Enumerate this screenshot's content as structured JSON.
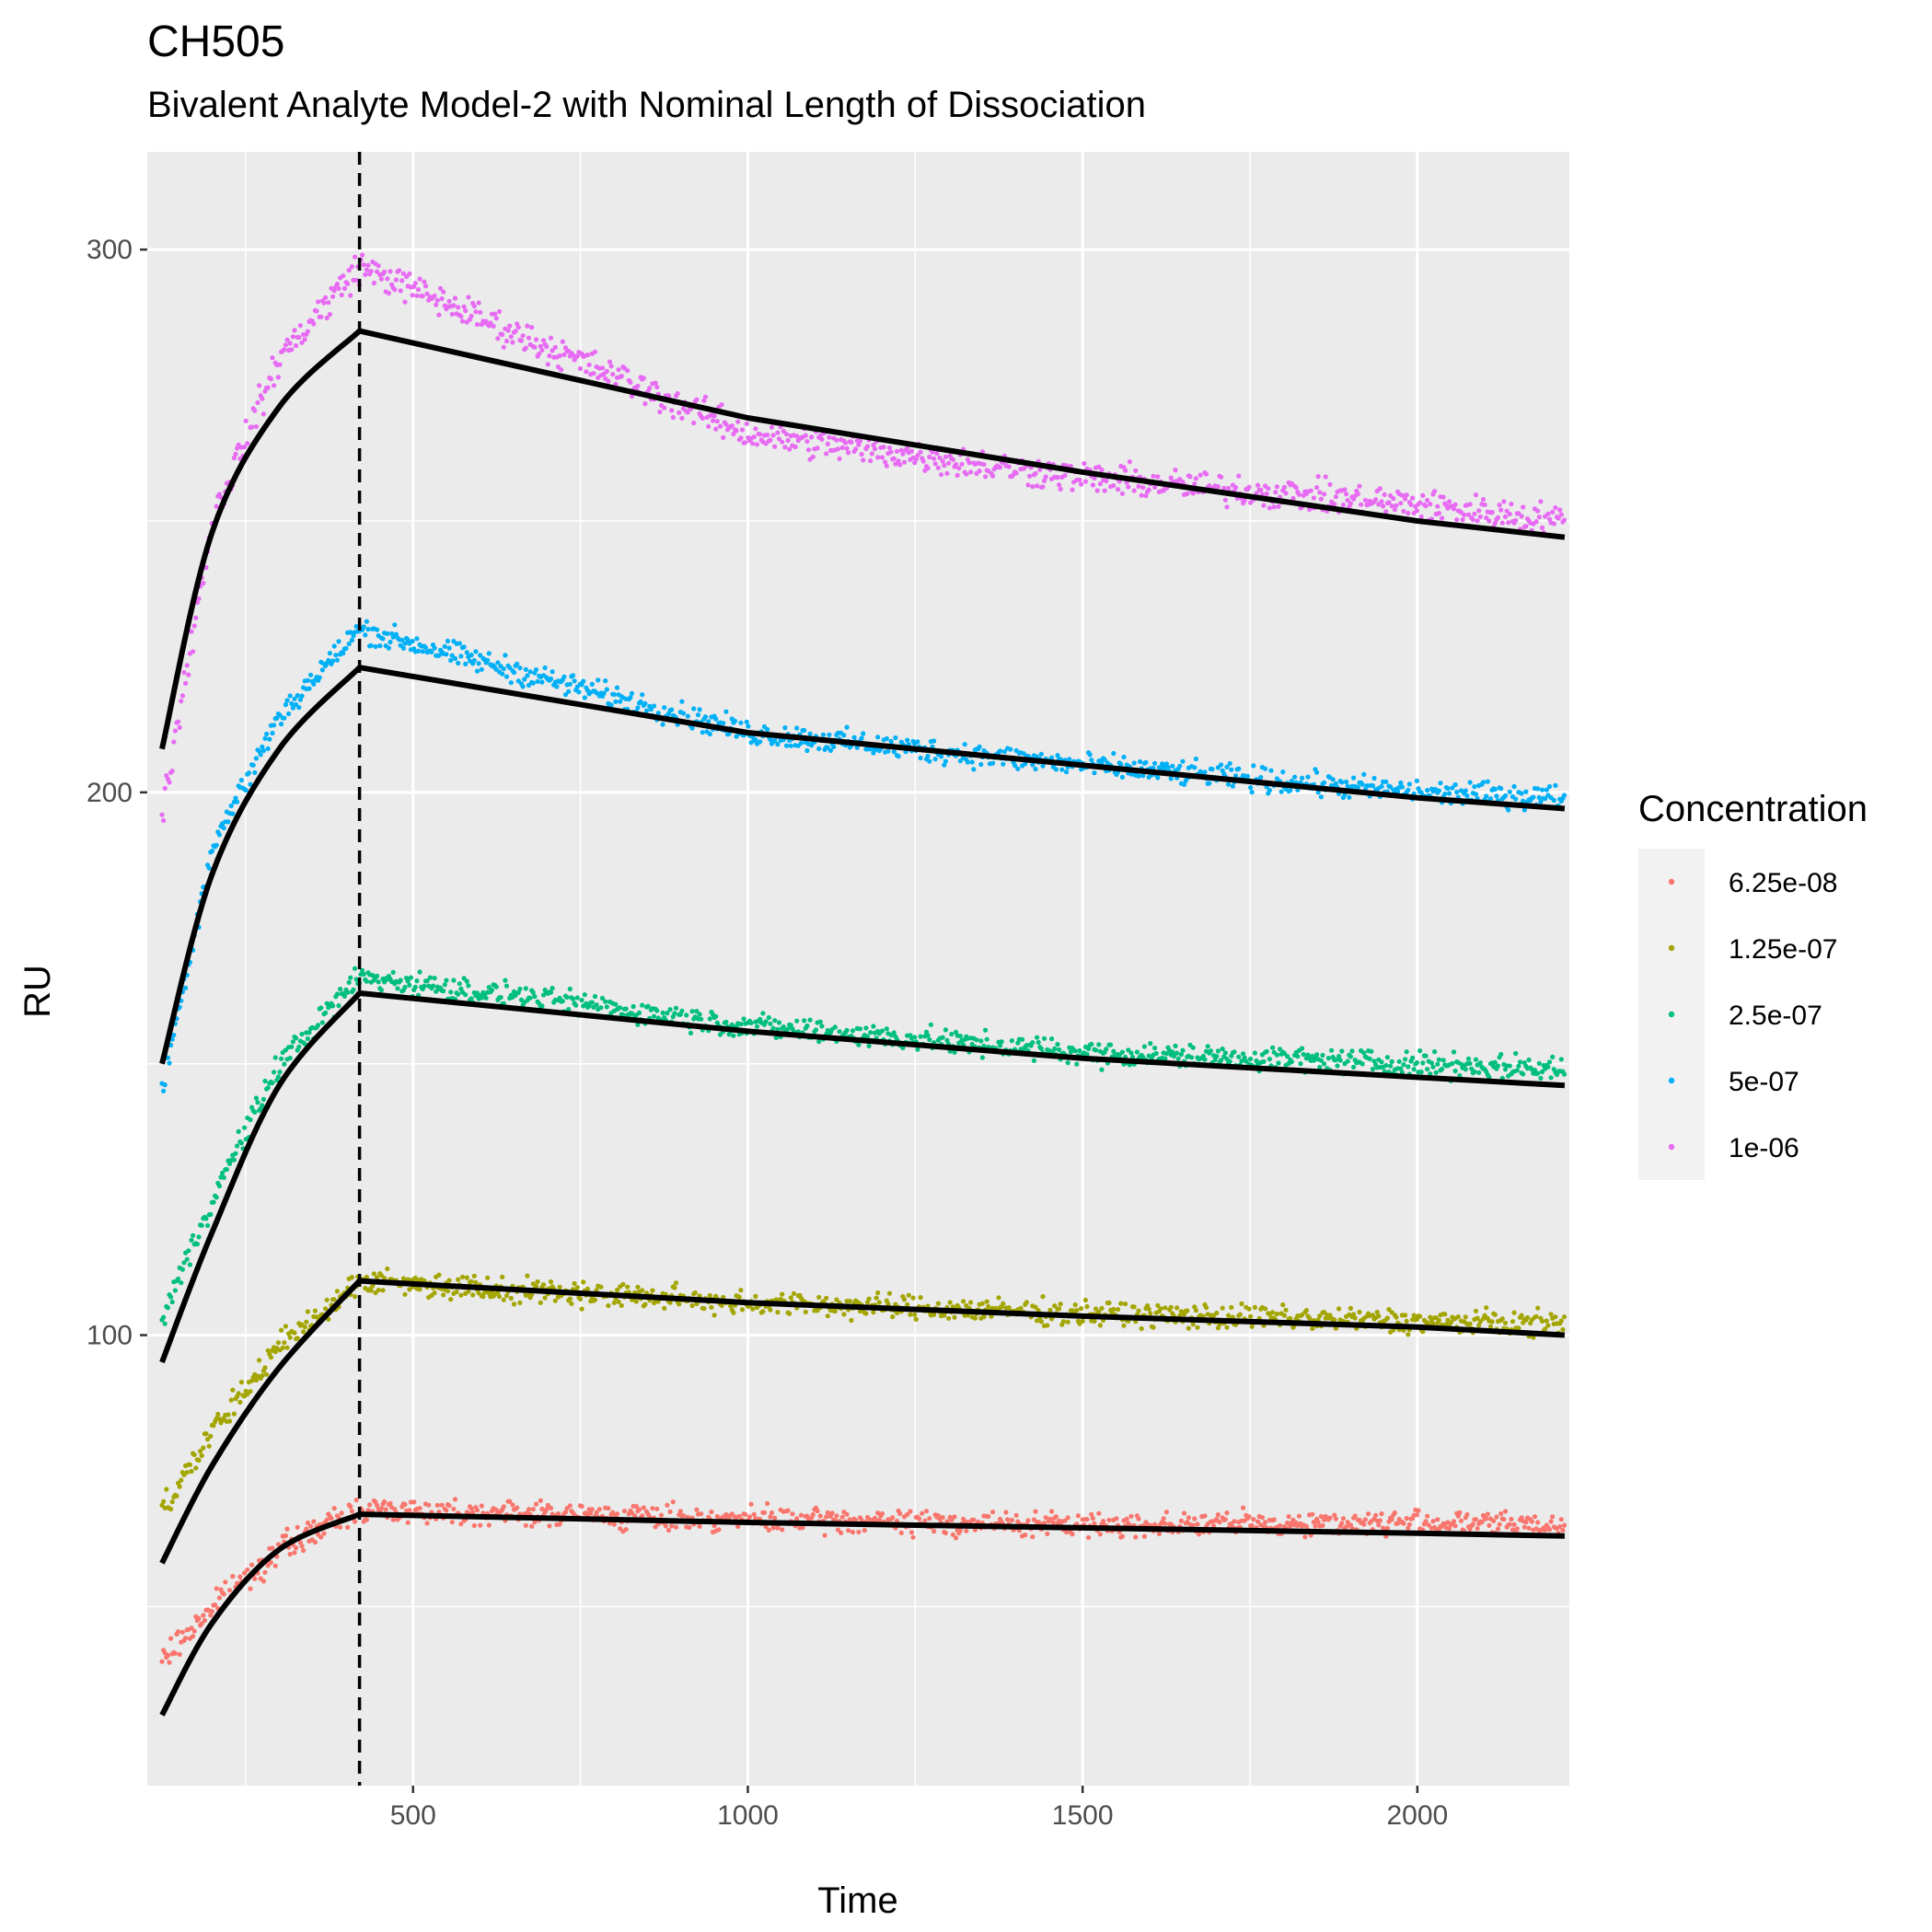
{
  "chart_data": {
    "type": "scatter",
    "title": "CH505",
    "subtitle": "Bivalent Analyte Model-2 with Nominal Length of Dissociation",
    "xlabel": "Time",
    "ylabel": "RU",
    "xlim": [
      103,
      2227
    ],
    "ylim": [
      17,
      318
    ],
    "x_ticks": [
      500,
      1000,
      1500,
      2000
    ],
    "y_ticks": [
      100,
      200,
      300
    ],
    "grid": true,
    "legend": {
      "title": "Concentration",
      "position": "right"
    },
    "association_end_time": 420,
    "series": [
      {
        "name": "6.25e-08",
        "color": "#F8766D",
        "fit_points": [
          [
            125,
            30
          ],
          [
            200,
            47
          ],
          [
            300,
            60.5
          ],
          [
            420,
            67
          ],
          [
            1000,
            65.5
          ],
          [
            1500,
            64.5
          ],
          [
            2000,
            63.5
          ],
          [
            2220,
            63
          ]
        ],
        "observed_points": [
          [
            125,
            40
          ],
          [
            200,
            50
          ],
          [
            300,
            60.5
          ],
          [
            420,
            68
          ],
          [
            1000,
            66
          ],
          [
            1500,
            65
          ],
          [
            2000,
            65.5
          ],
          [
            2220,
            65
          ]
        ]
      },
      {
        "name": "1.25e-07",
        "color": "#A3A500",
        "fit_points": [
          [
            125,
            58
          ],
          [
            200,
            76
          ],
          [
            300,
            94
          ],
          [
            420,
            110
          ],
          [
            1000,
            106
          ],
          [
            1500,
            103.5
          ],
          [
            2000,
            101.5
          ],
          [
            2220,
            100
          ]
        ],
        "observed_points": [
          [
            125,
            68
          ],
          [
            200,
            82
          ],
          [
            300,
            98
          ],
          [
            420,
            110
          ],
          [
            1000,
            106
          ],
          [
            1500,
            104
          ],
          [
            2000,
            102.5
          ],
          [
            2220,
            102
          ]
        ]
      },
      {
        "name": "2.5e-07",
        "color": "#00BF7D",
        "fit_points": [
          [
            125,
            95
          ],
          [
            200,
            119
          ],
          [
            300,
            146
          ],
          [
            420,
            163
          ],
          [
            1000,
            156
          ],
          [
            1500,
            151
          ],
          [
            2000,
            147.5
          ],
          [
            2220,
            146
          ]
        ],
        "observed_points": [
          [
            125,
            103
          ],
          [
            200,
            125
          ],
          [
            300,
            150
          ],
          [
            420,
            166
          ],
          [
            1000,
            157
          ],
          [
            1500,
            152
          ],
          [
            2000,
            150
          ],
          [
            2220,
            149
          ]
        ]
      },
      {
        "name": "5e-07",
        "color": "#00B0F6",
        "fit_points": [
          [
            125,
            150
          ],
          [
            200,
            185
          ],
          [
            300,
            208
          ],
          [
            420,
            223
          ],
          [
            1000,
            211
          ],
          [
            1500,
            205
          ],
          [
            2000,
            199
          ],
          [
            2220,
            197
          ]
        ],
        "observed_points": [
          [
            125,
            145
          ],
          [
            200,
            190
          ],
          [
            300,
            214
          ],
          [
            420,
            230
          ],
          [
            1000,
            211
          ],
          [
            1500,
            205
          ],
          [
            2000,
            200
          ],
          [
            2220,
            199
          ]
        ]
      },
      {
        "name": "1e-06",
        "color": "#E76BF3",
        "fit_points": [
          [
            125,
            208
          ],
          [
            200,
            248
          ],
          [
            300,
            271
          ],
          [
            420,
            285
          ],
          [
            1000,
            269
          ],
          [
            1500,
            259
          ],
          [
            2000,
            250
          ],
          [
            2220,
            247
          ]
        ],
        "observed_points": [
          [
            125,
            196
          ],
          [
            200,
            250
          ],
          [
            300,
            280
          ],
          [
            420,
            297
          ],
          [
            1000,
            266
          ],
          [
            1500,
            258
          ],
          [
            2000,
            253
          ],
          [
            2220,
            250
          ]
        ]
      }
    ]
  }
}
